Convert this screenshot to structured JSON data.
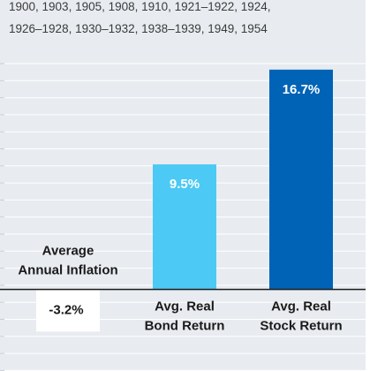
{
  "header": {
    "line1": "1900, 1903, 1905, 1908, 1910, 1921–1922, 1924,",
    "line2": "1926–1928, 1930–1932, 1938–1939, 1949, 1954"
  },
  "chart_data": {
    "type": "bar",
    "categories": [
      "Average Annual Inflation",
      "Avg. Real Bond Return",
      "Avg. Real Stock Return"
    ],
    "category_lines": [
      [
        "Average",
        "Annual Inflation"
      ],
      [
        "Avg. Real",
        "Bond Return"
      ],
      [
        "Avg. Real",
        "Stock Return"
      ]
    ],
    "values": [
      -3.2,
      9.5,
      16.7
    ],
    "data_labels": [
      "-3.2%",
      "9.5%",
      "16.7%"
    ],
    "colors": [
      "#ffffff",
      "#4cc9f5",
      "#0063b6"
    ],
    "ylim": [
      -6.2,
      18.5
    ],
    "grid": true,
    "background": "#e8ecf0",
    "title": "",
    "xlabel": "",
    "ylabel": ""
  }
}
